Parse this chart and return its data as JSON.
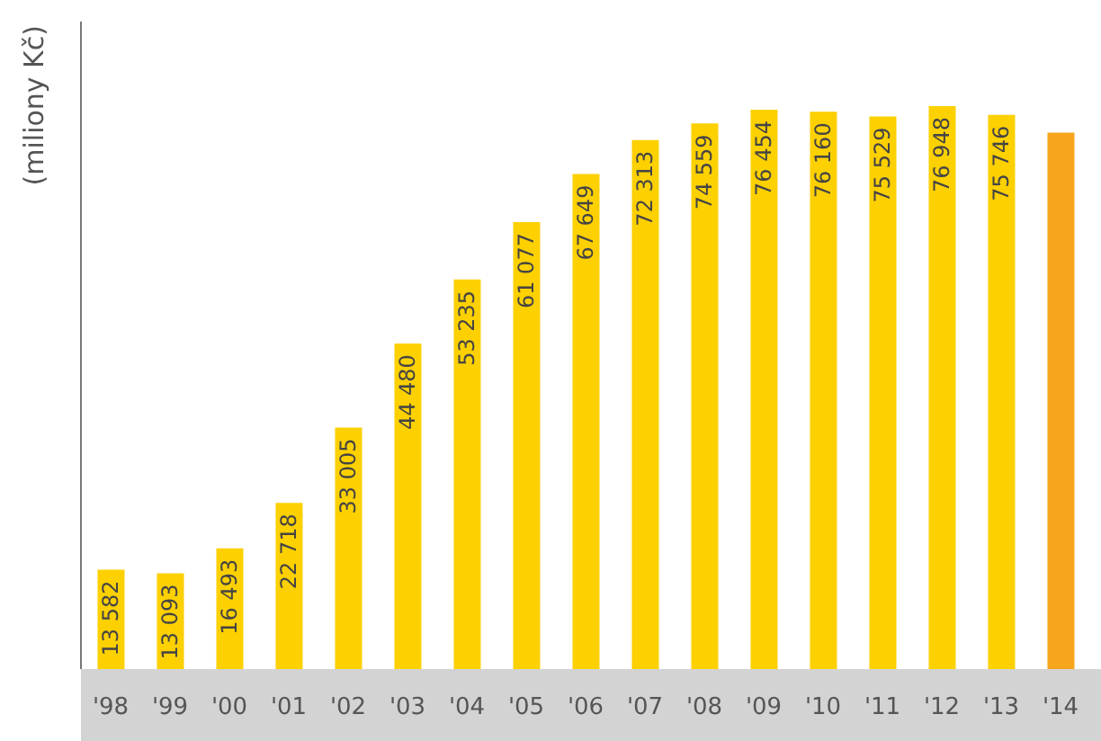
{
  "chart_data": {
    "type": "bar",
    "ylabel": "(miliony Kč)",
    "categories": [
      "'98",
      "'99",
      "'00",
      "'01",
      "'02",
      "'03",
      "'04",
      "'05",
      "'06",
      "'07",
      "'08",
      "'09",
      "'10",
      "'11",
      "'12",
      "'13",
      "'14"
    ],
    "values": [
      13582,
      13093,
      16493,
      22718,
      33005,
      44480,
      53235,
      61077,
      67649,
      72313,
      74559,
      76454,
      76160,
      75529,
      76948,
      75746,
      73300
    ],
    "colors": [
      "#fdd000",
      "#fdd000",
      "#fdd000",
      "#fdd000",
      "#fdd000",
      "#fdd000",
      "#fdd000",
      "#fdd000",
      "#fdd000",
      "#fdd000",
      "#fdd000",
      "#fdd000",
      "#fdd000",
      "#fdd000",
      "#fdd000",
      "#fdd000",
      "#f6a51c"
    ],
    "value_labels": [
      "13 582",
      "13 093",
      "16 493",
      "22 718",
      "33 005",
      "44 480",
      "53 235",
      "61 077",
      "67 649",
      "72 313",
      "74 559",
      "76 454",
      "76 160",
      "75 529",
      "76 948",
      "75 746",
      null
    ],
    "grid": false,
    "legend": false
  }
}
